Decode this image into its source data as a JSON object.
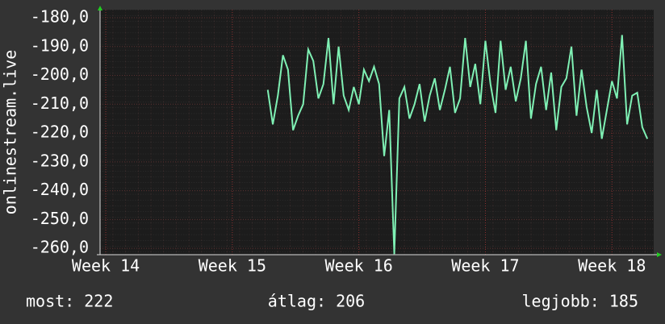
{
  "chart_data": {
    "type": "line",
    "y_label": "onlinestream.live",
    "x": [
      15.28,
      15.32,
      15.36,
      15.4,
      15.44,
      15.48,
      15.52,
      15.56,
      15.6,
      15.64,
      15.68,
      15.72,
      15.76,
      15.8,
      15.84,
      15.88,
      15.92,
      15.96,
      16,
      16.04,
      16.08,
      16.12,
      16.16,
      16.2,
      16.24,
      16.28,
      16.32,
      16.36,
      16.4,
      16.44,
      16.48,
      16.52,
      16.56,
      16.6,
      16.64,
      16.68,
      16.72,
      16.76,
      16.8,
      16.84,
      16.88,
      16.92,
      16.96,
      17,
      17.04,
      17.08,
      17.12,
      17.16,
      17.2,
      17.24,
      17.28,
      17.32,
      17.36,
      17.4,
      17.44,
      17.48,
      17.52,
      17.56,
      17.6,
      17.64,
      17.68,
      17.72,
      17.76,
      17.8,
      17.84,
      17.88,
      17.92,
      17.96,
      18,
      18.04,
      18.08,
      18.12,
      18.16,
      18.2,
      18.24,
      18.28
    ],
    "series": [
      {
        "name": "onlinestream.live",
        "color": "#7ff0b4",
        "values": [
          -205,
          -217,
          -207,
          -193,
          -198,
          -219,
          -214,
          -210,
          -191,
          -195,
          -208,
          -203,
          -187,
          -210,
          -190,
          -207,
          -212,
          -204,
          -210,
          -198,
          -202,
          -197,
          -203,
          -228,
          -212,
          -262,
          -208,
          -204,
          -215,
          -210,
          -203,
          -216,
          -207,
          -201,
          -212,
          -205,
          -197,
          -213,
          -208,
          -187,
          -204,
          -196,
          -210,
          -188,
          -203,
          -213,
          -188,
          -205,
          -197,
          -209,
          -201,
          -188,
          -215,
          -203,
          -197,
          -212,
          -199,
          -219,
          -204,
          -201,
          -190,
          -214,
          -198,
          -211,
          -220,
          -205,
          -222,
          -212,
          -202,
          -208,
          -186,
          -217,
          -207,
          -206,
          -218,
          -222
        ]
      }
    ],
    "xlim": [
      13.955,
      18.33
    ],
    "xticks": [
      {
        "value": 14,
        "label": "Week 14"
      },
      {
        "value": 15,
        "label": "Week 15"
      },
      {
        "value": 16,
        "label": "Week 16"
      },
      {
        "value": 17,
        "label": "Week 17"
      },
      {
        "value": 18,
        "label": "Week 18"
      }
    ],
    "ylim": [
      -262.2,
      -177.2
    ],
    "yticks": [
      {
        "value": -180,
        "label": "-180,0"
      },
      {
        "value": -190,
        "label": "-190,0"
      },
      {
        "value": -200,
        "label": "-200,0"
      },
      {
        "value": -210,
        "label": "-210,0"
      },
      {
        "value": -220,
        "label": "-220,0"
      },
      {
        "value": -230,
        "label": "-230,0"
      },
      {
        "value": -240,
        "label": "-240,0"
      },
      {
        "value": -250,
        "label": "-250,0"
      },
      {
        "value": -260,
        "label": "-260,0"
      }
    ],
    "grid": true,
    "summary": [
      "most: 222",
      "átlag: 206",
      "legjobb: 185"
    ]
  }
}
